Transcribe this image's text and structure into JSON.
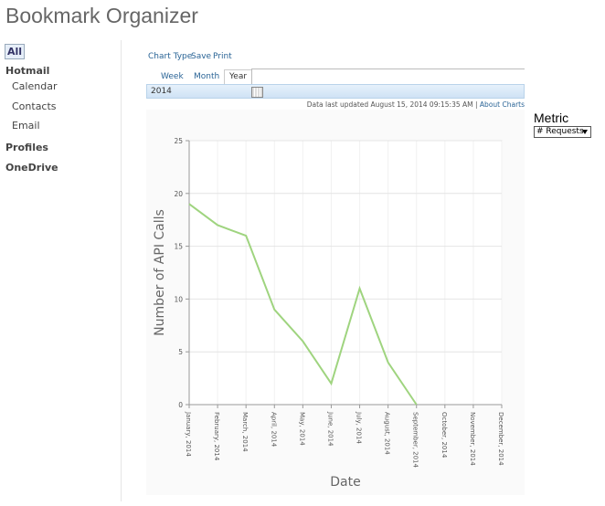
{
  "header": {
    "title": "Bookmark Organizer"
  },
  "nav": {
    "all": "All",
    "groups": [
      {
        "label": "Hotmail",
        "items": [
          "Calendar",
          "Contacts",
          "Email"
        ]
      },
      {
        "label": "Profiles",
        "items": []
      },
      {
        "label": "OneDrive",
        "items": []
      }
    ]
  },
  "toolbar": [
    "Chart Type",
    "Save",
    "Print"
  ],
  "tabs": [
    "Week",
    "Month",
    "Year"
  ],
  "date_value": "2014",
  "status": {
    "text": "Data last updated August 15, 2014 09:15:35 AM",
    "separator": "|",
    "link": "About Charts"
  },
  "metric": {
    "label": "Metric",
    "option": "# Requests"
  },
  "chart_data": {
    "type": "line",
    "x_label": "Date",
    "y_label": "Number of API Calls",
    "categories": [
      "January, 2014",
      "February, 2014",
      "March, 2014",
      "April, 2014",
      "May, 2014",
      "June, 2014",
      "July, 2014",
      "August, 2014",
      "September, 2014",
      "October, 2014",
      "November, 2014",
      "December, 2014"
    ],
    "values": [
      19,
      17,
      16,
      9,
      6,
      2,
      11,
      4,
      0,
      null,
      null,
      null
    ],
    "color": "#9fd47f",
    "ylim": [
      0,
      25
    ],
    "yticks": [
      0,
      5,
      10,
      15,
      20,
      25
    ],
    "grid": true
  }
}
